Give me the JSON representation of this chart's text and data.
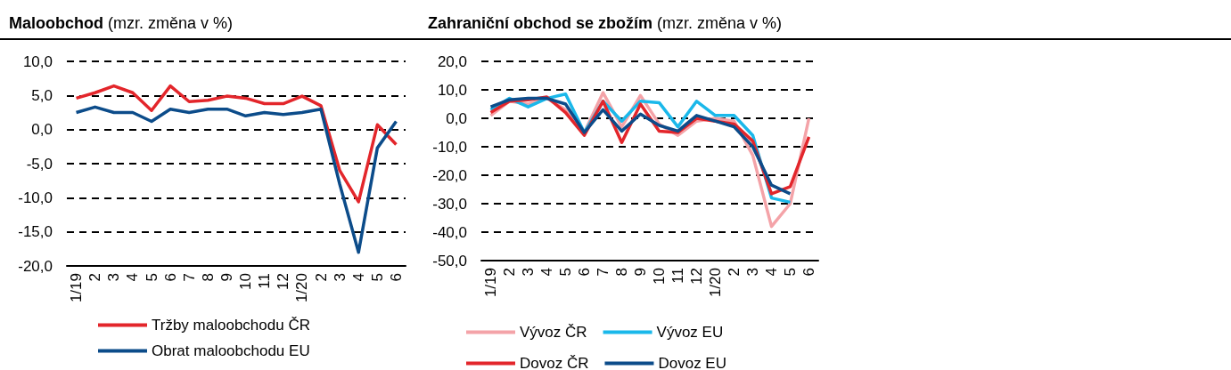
{
  "chart_data": [
    {
      "type": "line",
      "title": "Maloobchod",
      "subtitle": "(mzr. změna v %)",
      "categories": [
        "1/19",
        "2",
        "3",
        "4",
        "5",
        "6",
        "7",
        "8",
        "9",
        "10",
        "11",
        "12",
        "1/20",
        "2",
        "3",
        "4",
        "5",
        "6"
      ],
      "series": [
        {
          "name": "Tržby maloobchodu ČR",
          "color": "#e3262b",
          "values": [
            4.6,
            5.4,
            6.4,
            5.4,
            2.8,
            6.4,
            4.1,
            4.3,
            4.9,
            4.6,
            3.8,
            3.8,
            4.9,
            3.5,
            -6.0,
            -10.6,
            0.7,
            -2.2
          ]
        },
        {
          "name": "Obrat maloobchodu EU",
          "color": "#0c4c8a",
          "values": [
            2.5,
            3.3,
            2.5,
            2.5,
            1.2,
            3.0,
            2.5,
            3.0,
            3.0,
            2.0,
            2.5,
            2.2,
            2.5,
            3.0,
            -8.0,
            -18.0,
            -2.7,
            1.2
          ]
        }
      ],
      "ylim": [
        -20,
        10
      ],
      "yticks": [
        {
          "value": -20,
          "label": "-20,0"
        },
        {
          "value": -15,
          "label": "-15,0"
        },
        {
          "value": -10,
          "label": "-10,0"
        },
        {
          "value": -5,
          "label": "-5,0"
        },
        {
          "value": 0,
          "label": "0,0"
        },
        {
          "value": 5,
          "label": "5,0"
        },
        {
          "value": 10,
          "label": "10,0"
        }
      ],
      "grid": "y",
      "legend": "bottom",
      "marker": "none"
    },
    {
      "type": "line",
      "title": "Zahraniční obchod se zbožím",
      "subtitle": "(mzr. změna v %)",
      "categories": [
        "1/19",
        "2",
        "3",
        "4",
        "5",
        "6",
        "7",
        "8",
        "9",
        "10",
        "11",
        "12",
        "1/20",
        "2",
        "3",
        "4",
        "5",
        "6"
      ],
      "series": [
        {
          "name": "Vývoz ČR",
          "color": "#f4a3a8",
          "values": [
            1,
            6,
            5,
            7,
            3,
            -5,
            9,
            -3,
            8,
            -2,
            -6,
            -1,
            0,
            -1,
            -13,
            -38,
            -30,
            0
          ]
        },
        {
          "name": "Vývoz EU",
          "color": "#1ab8ea",
          "values": [
            3,
            7,
            4,
            7,
            8.5,
            -5,
            6,
            -1,
            6,
            5.5,
            -3,
            6,
            1,
            1,
            -6,
            -28,
            -29.5,
            null
          ]
        },
        {
          "name": "Dovoz ČR",
          "color": "#e3262b",
          "values": [
            2,
            6,
            6.5,
            7.5,
            2,
            -6,
            6,
            -8.5,
            5,
            -4.5,
            -5,
            0,
            -1,
            -2,
            -8,
            -26.5,
            -24,
            -6.5
          ]
        },
        {
          "name": "Dovoz EU",
          "color": "#0c4c8a",
          "values": [
            4,
            6.5,
            7,
            7,
            5,
            -5,
            3,
            -4.5,
            1.5,
            -2.5,
            -4.5,
            1,
            -1,
            -3,
            -10,
            -23.5,
            -26.5,
            null
          ]
        }
      ],
      "ylim": [
        -50,
        20
      ],
      "yticks": [
        {
          "value": -50,
          "label": "-50,0"
        },
        {
          "value": -40,
          "label": "-40,0"
        },
        {
          "value": -30,
          "label": "-30,0"
        },
        {
          "value": -20,
          "label": "-20,0"
        },
        {
          "value": -10,
          "label": "-10,0"
        },
        {
          "value": 0,
          "label": "0,0"
        },
        {
          "value": 10,
          "label": "10,0"
        },
        {
          "value": 20,
          "label": "20,0"
        }
      ],
      "grid": "y",
      "legend": "bottom",
      "marker": "none"
    }
  ]
}
